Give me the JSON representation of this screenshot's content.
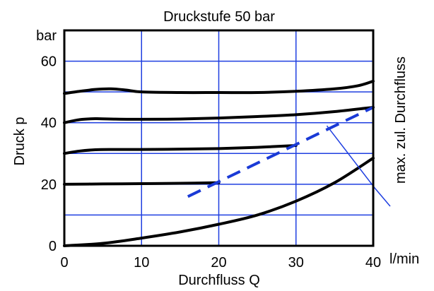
{
  "chart_data": {
    "type": "line",
    "title": "Druckstufe 50 bar",
    "xlabel": "Durchfluss Q",
    "ylabel": "Druck p",
    "x_unit": "l/min",
    "y_unit": "bar",
    "xlim": [
      0,
      40
    ],
    "ylim": [
      0,
      70
    ],
    "x_ticks": [
      0,
      10,
      20,
      30,
      40
    ],
    "y_ticks": [
      0,
      20,
      40,
      60
    ],
    "grid": true,
    "grid_x": [
      0,
      10,
      20,
      30,
      40
    ],
    "grid_y": [
      0,
      10,
      20,
      30,
      40,
      50,
      60
    ],
    "colors": {
      "curve": "#000000",
      "grid": "#1f3fe0",
      "limit": "#1a3ad6",
      "leader": "#1f3fe0"
    },
    "series": [
      {
        "x": [
          0,
          2,
          4,
          6,
          8,
          10,
          15,
          20,
          25,
          30,
          35,
          38,
          40
        ],
        "y": [
          49.5,
          50.2,
          50.8,
          51,
          50.6,
          50,
          49.8,
          49.8,
          49.8,
          50.2,
          51,
          52,
          53.5
        ]
      },
      {
        "x": [
          0,
          2,
          4,
          6,
          10,
          15,
          20,
          25,
          30,
          35,
          40
        ],
        "y": [
          40,
          41,
          41.3,
          41.2,
          41.1,
          41.2,
          41.5,
          42,
          42.6,
          43.6,
          45
        ]
      },
      {
        "x": [
          0,
          2,
          4,
          6,
          10,
          15,
          20,
          25,
          30
        ],
        "y": [
          30,
          30.8,
          31.2,
          31.3,
          31.3,
          31.4,
          31.6,
          32,
          32.6
        ]
      },
      {
        "x": [
          0,
          5,
          10,
          15,
          20
        ],
        "y": [
          20,
          20.1,
          20.2,
          20.3,
          20.5
        ]
      },
      {
        "x": [
          0,
          5,
          10,
          15,
          20,
          25,
          30,
          35,
          40
        ],
        "y": [
          0,
          0.8,
          2.5,
          4.5,
          7,
          10,
          14.5,
          20.5,
          28.5
        ]
      }
    ],
    "limit_line": {
      "name": "max. zul. Durchfluss",
      "x": [
        16,
        40
      ],
      "y": [
        16,
        45
      ],
      "style": "dashed"
    },
    "annotation": {
      "text": "max. zul. Durchfluss",
      "points_to": {
        "x": 34,
        "y": 39
      }
    }
  }
}
